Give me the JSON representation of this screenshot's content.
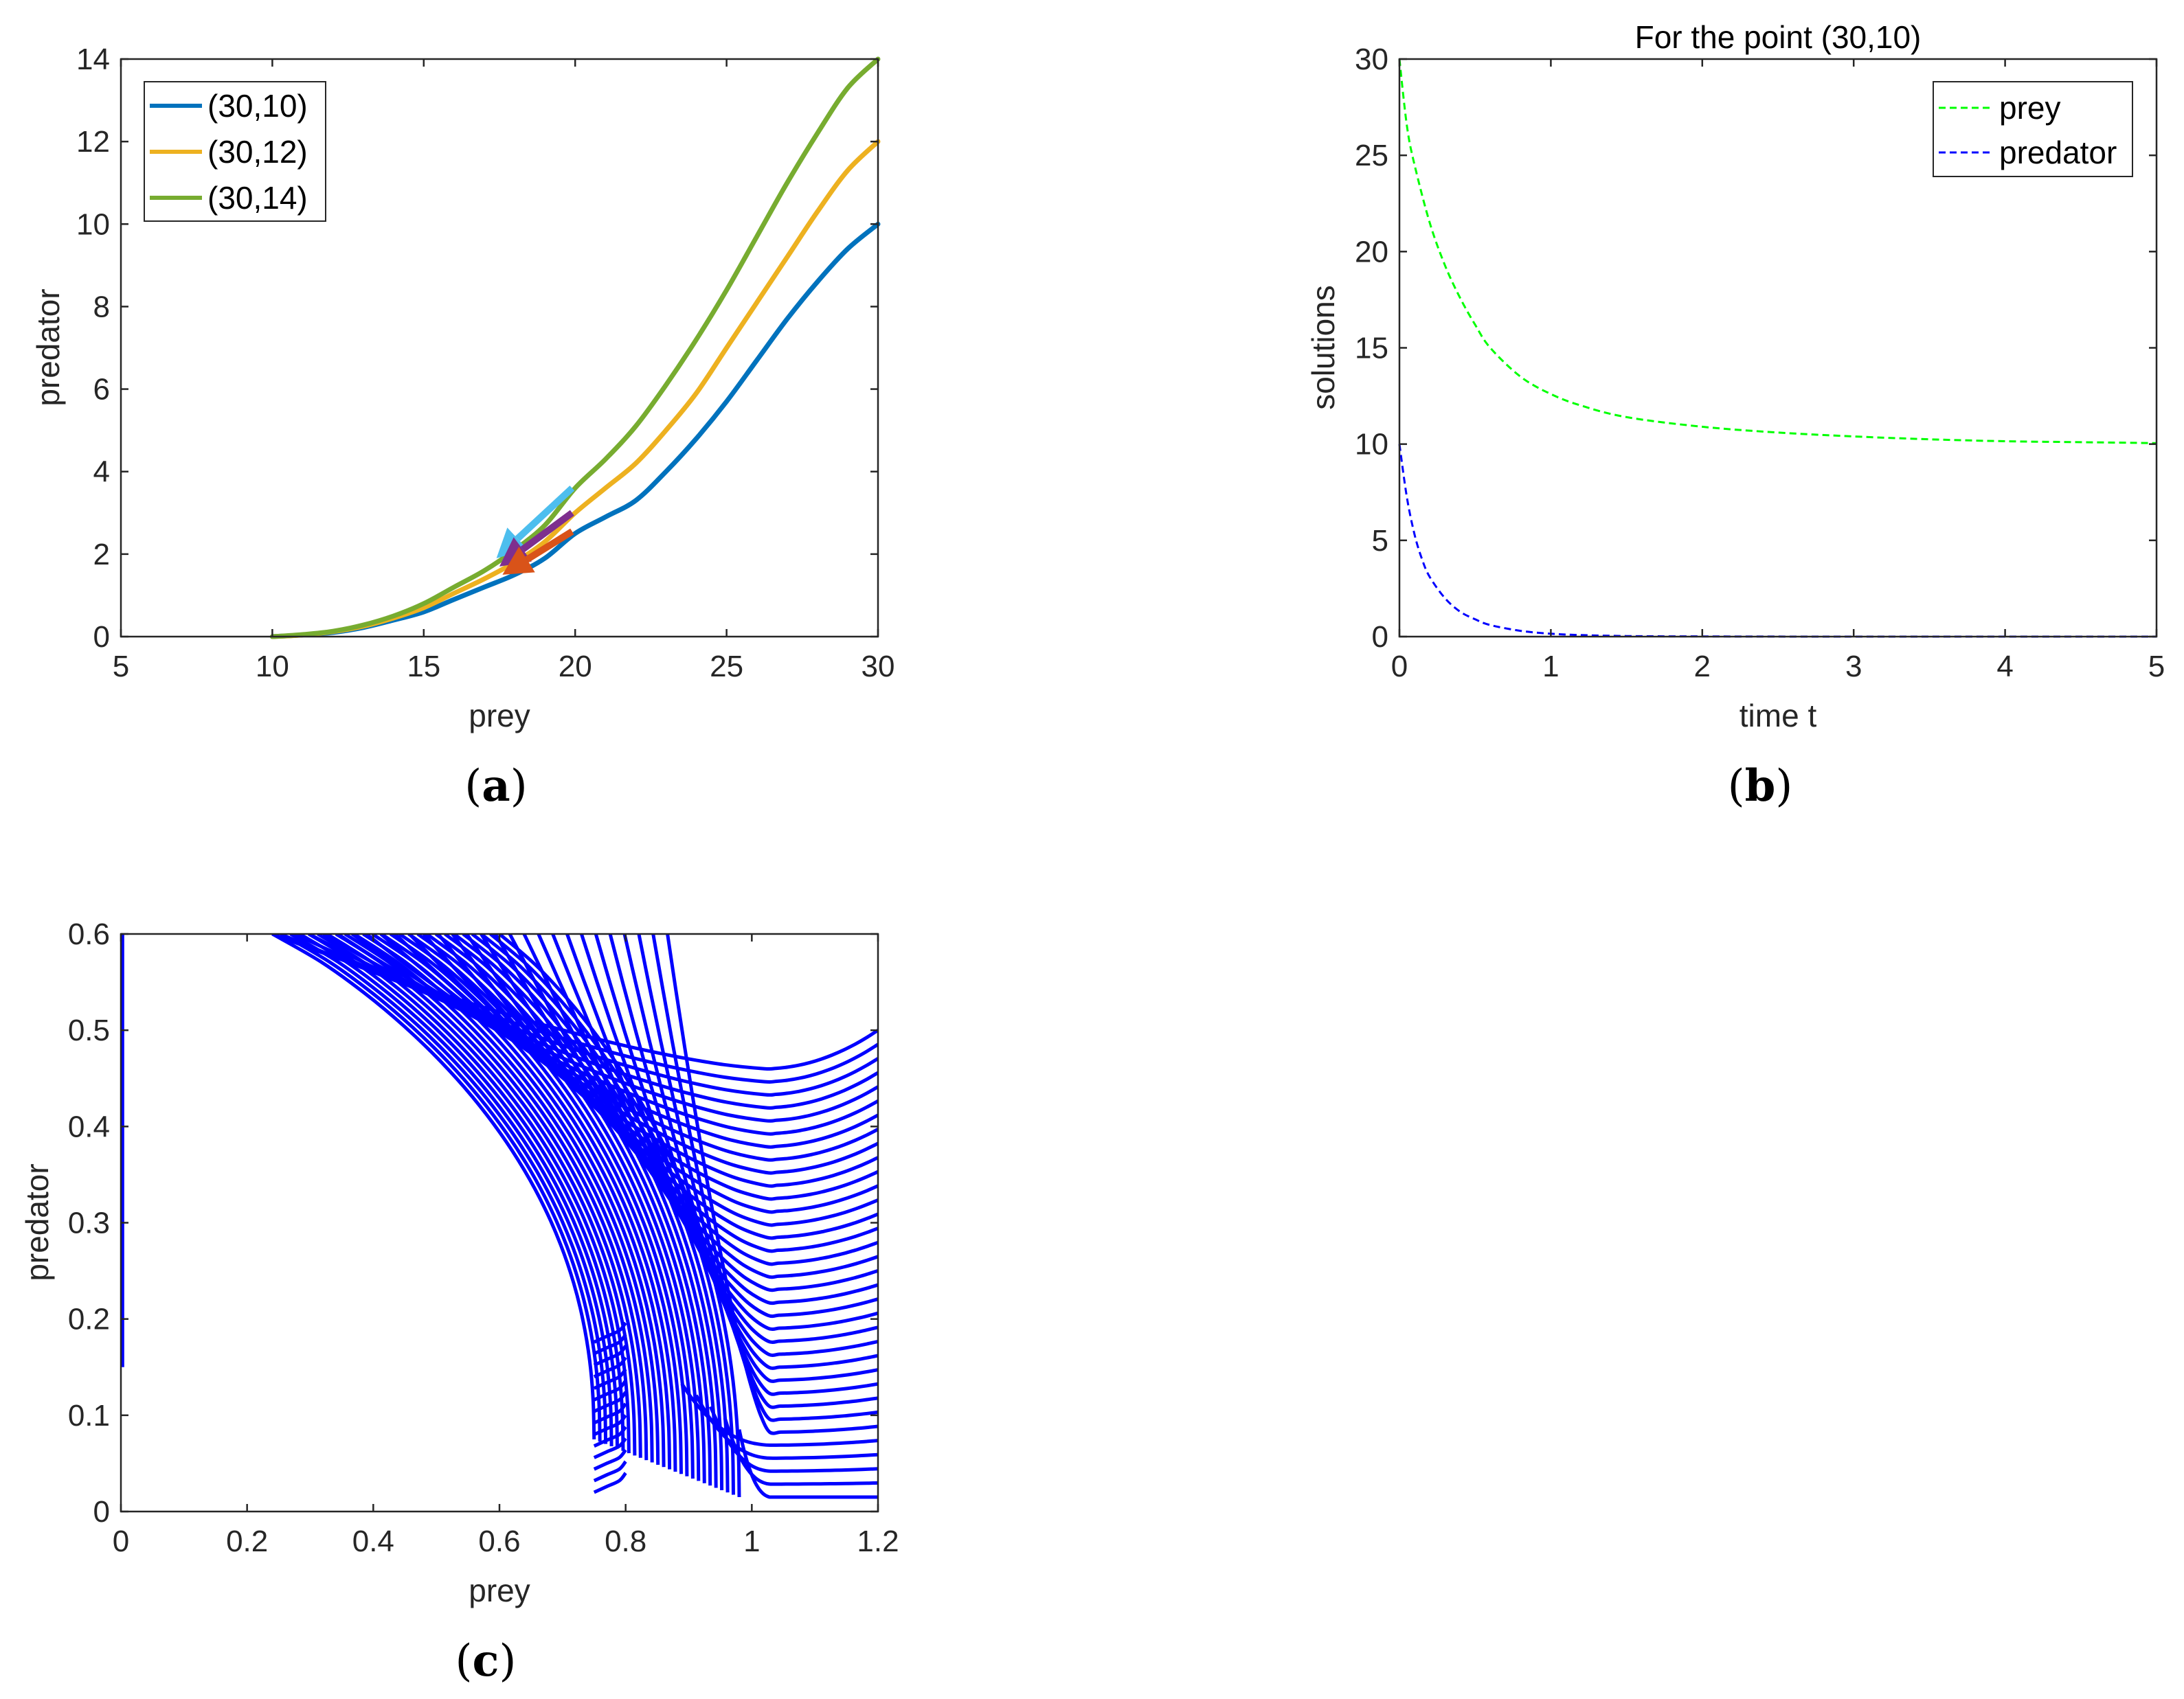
{
  "chart_data": [
    {
      "id": "a",
      "type": "line",
      "caption": "a",
      "title": "",
      "xlabel": "prey",
      "ylabel": "predator",
      "xlim": [
        5,
        30
      ],
      "ylim": [
        0,
        14
      ],
      "xticks": [
        5,
        10,
        15,
        20,
        25,
        30
      ],
      "yticks": [
        0,
        2,
        4,
        6,
        8,
        10,
        12,
        14
      ],
      "grid": false,
      "legend": "top-left",
      "series": [
        {
          "name": "(30,10)",
          "color": "#0072BD",
          "x": [
            30,
            29,
            28,
            27,
            26,
            25,
            24,
            23,
            22,
            21,
            20,
            19,
            18,
            17,
            16,
            15,
            14,
            13,
            12,
            11,
            10
          ],
          "y": [
            10,
            9.4,
            8.6,
            7.7,
            6.7,
            5.7,
            4.8,
            4.0,
            3.3,
            2.9,
            2.5,
            1.9,
            1.5,
            1.2,
            0.9,
            0.6,
            0.4,
            0.22,
            0.1,
            0.04,
            0
          ]
        },
        {
          "name": "(30,12)",
          "color": "#EDB120",
          "x": [
            30,
            29,
            28,
            27,
            26,
            25,
            24,
            23,
            22,
            21,
            20,
            19,
            18,
            17,
            16,
            15,
            14,
            13,
            12,
            11,
            10
          ],
          "y": [
            12,
            11.3,
            10.3,
            9.2,
            8.1,
            7.0,
            5.9,
            5.0,
            4.2,
            3.6,
            3.0,
            2.3,
            1.8,
            1.4,
            1.05,
            0.7,
            0.45,
            0.25,
            0.12,
            0.04,
            0
          ]
        },
        {
          "name": "(30,14)",
          "color": "#77AC30",
          "x": [
            30,
            29,
            28,
            27,
            26,
            25,
            24,
            23,
            22,
            21,
            20,
            19,
            18,
            17,
            16,
            15,
            14,
            13,
            12,
            11,
            10
          ],
          "y": [
            14,
            13.3,
            12.2,
            11.0,
            9.7,
            8.4,
            7.2,
            6.1,
            5.1,
            4.3,
            3.6,
            2.7,
            2.1,
            1.6,
            1.2,
            0.8,
            0.5,
            0.28,
            0.13,
            0.05,
            0
          ]
        }
      ],
      "arrows": [
        {
          "color": "#4DBEEE",
          "from": [
            19.9,
            3.6
          ],
          "to": [
            17.4,
            1.9
          ]
        },
        {
          "color": "#7E2F8E",
          "from": [
            19.9,
            3.0
          ],
          "to": [
            17.5,
            1.7
          ]
        },
        {
          "color": "#D95319",
          "from": [
            19.9,
            2.55
          ],
          "to": [
            17.6,
            1.5
          ]
        }
      ]
    },
    {
      "id": "b",
      "type": "line",
      "caption": "b",
      "title": "For the point (30,10)",
      "xlabel": "time t",
      "ylabel": "solutions",
      "xlim": [
        0,
        5
      ],
      "ylim": [
        0,
        30
      ],
      "xticks": [
        0,
        1,
        2,
        3,
        4,
        5
      ],
      "yticks": [
        0,
        5,
        10,
        15,
        20,
        25,
        30
      ],
      "grid": false,
      "legend": "top-right",
      "series": [
        {
          "name": "prey",
          "color": "#00FF00",
          "dashed": true,
          "x": [
            0,
            0.05,
            0.1,
            0.2,
            0.3,
            0.4,
            0.5,
            0.6,
            0.8,
            1.0,
            1.2,
            1.5,
            2.0,
            2.5,
            3.0,
            3.5,
            4.0,
            4.5,
            5.0
          ],
          "y": [
            30,
            26.5,
            24.5,
            21.5,
            19.3,
            17.6,
            16.2,
            15.0,
            13.5,
            12.6,
            12.0,
            11.4,
            10.9,
            10.6,
            10.4,
            10.25,
            10.15,
            10.1,
            10.05
          ]
        },
        {
          "name": "predator",
          "color": "#0000FF",
          "dashed": true,
          "x": [
            0,
            0.05,
            0.1,
            0.15,
            0.2,
            0.3,
            0.4,
            0.5,
            0.6,
            0.8,
            1.0,
            1.2,
            1.5,
            2.0,
            3.0,
            4.0,
            5.0
          ],
          "y": [
            10,
            7.2,
            5.3,
            4.0,
            3.1,
            2.0,
            1.3,
            0.9,
            0.6,
            0.3,
            0.15,
            0.08,
            0.03,
            0.01,
            0,
            0,
            0
          ]
        }
      ]
    },
    {
      "id": "c",
      "type": "line",
      "caption": "c",
      "title": "",
      "xlabel": "prey",
      "ylabel": "predator",
      "xlim": [
        0,
        1.2
      ],
      "ylim": [
        0,
        0.6
      ],
      "xticks": [
        0,
        0.2,
        0.4,
        0.6,
        0.8,
        1,
        1.2
      ],
      "yticks": [
        0,
        0.1,
        0.2,
        0.3,
        0.4,
        0.5,
        0.6
      ],
      "grid": false,
      "legend": "",
      "color": "#0000FF"
    }
  ],
  "captions": [
    "a",
    "b",
    "c"
  ]
}
